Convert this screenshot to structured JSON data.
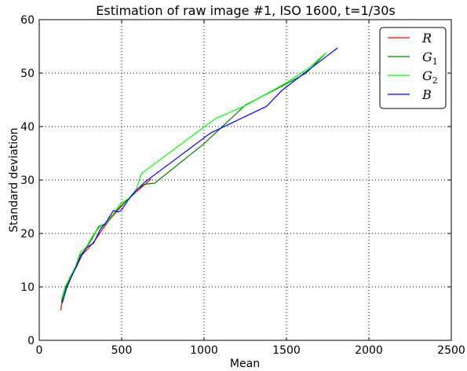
{
  "chart_data": {
    "type": "line",
    "title": "Estimation of raw image #1, ISO 1600, t=1/30s",
    "xlabel": "Mean",
    "ylabel": "Standard deviation",
    "xlim": [
      0,
      2500
    ],
    "ylim": [
      0,
      60
    ],
    "xticks": [
      0,
      500,
      1000,
      1500,
      2000,
      2500
    ],
    "yticks": [
      0,
      10,
      20,
      30,
      40,
      50,
      60
    ],
    "grid": true,
    "legend_position": "top-right",
    "series": [
      {
        "name": "R",
        "legend_main": "R",
        "legend_sub": "",
        "color": "#ff0000",
        "points": [
          [
            130,
            5.6
          ],
          [
            145,
            8.5
          ],
          [
            170,
            10.5
          ],
          [
            200,
            12.3
          ],
          [
            230,
            14.0
          ],
          [
            260,
            16.0
          ],
          [
            300,
            17.3
          ],
          [
            340,
            18.8
          ],
          [
            380,
            20.6
          ],
          [
            420,
            22.3
          ],
          [
            470,
            24.1
          ],
          [
            520,
            25.8
          ],
          [
            570,
            27.3
          ],
          [
            620,
            28.6
          ],
          [
            680,
            30.2
          ]
        ]
      },
      {
        "name": "G1",
        "legend_main": "G",
        "legend_sub": "1",
        "color": "#008000",
        "points": [
          [
            135,
            7.2
          ],
          [
            160,
            9.8
          ],
          [
            185,
            11.8
          ],
          [
            215,
            13.3
          ],
          [
            245,
            15.8
          ],
          [
            280,
            17.0
          ],
          [
            320,
            19.0
          ],
          [
            360,
            21.3
          ],
          [
            400,
            21.8
          ],
          [
            440,
            23.3
          ],
          [
            490,
            25.0
          ],
          [
            540,
            26.4
          ],
          [
            590,
            28.2
          ],
          [
            640,
            29.2
          ],
          [
            700,
            29.4
          ],
          [
            1000,
            36.8
          ],
          [
            1250,
            44.0
          ],
          [
            1500,
            48.0
          ],
          [
            1620,
            50.0
          ],
          [
            1740,
            53.8
          ]
        ]
      },
      {
        "name": "G2",
        "legend_main": "G",
        "legend_sub": "2",
        "color": "#00ff00",
        "points": [
          [
            135,
            7.6
          ],
          [
            160,
            10.2
          ],
          [
            190,
            12.0
          ],
          [
            220,
            13.8
          ],
          [
            250,
            16.5
          ],
          [
            285,
            17.4
          ],
          [
            325,
            19.6
          ],
          [
            360,
            21.0
          ],
          [
            395,
            21.5
          ],
          [
            440,
            23.2
          ],
          [
            490,
            25.5
          ],
          [
            540,
            26.5
          ],
          [
            580,
            27.4
          ],
          [
            620,
            31.2
          ],
          [
            1070,
            41.5
          ],
          [
            1250,
            43.9
          ],
          [
            1500,
            48.2
          ],
          [
            1630,
            50.8
          ],
          [
            1740,
            53.8
          ]
        ]
      },
      {
        "name": "B",
        "legend_main": "B",
        "legend_sub": "",
        "color": "#0000ff",
        "points": [
          [
            140,
            7.0
          ],
          [
            165,
            9.7
          ],
          [
            190,
            11.5
          ],
          [
            220,
            13.5
          ],
          [
            250,
            15.6
          ],
          [
            285,
            17.3
          ],
          [
            330,
            18.2
          ],
          [
            370,
            20.7
          ],
          [
            410,
            22.3
          ],
          [
            450,
            24.3
          ],
          [
            480,
            24.0
          ],
          [
            500,
            24.4
          ],
          [
            540,
            26.3
          ],
          [
            590,
            28.1
          ],
          [
            640,
            29.6
          ],
          [
            1040,
            38.8
          ],
          [
            1380,
            43.8
          ],
          [
            1470,
            46.7
          ],
          [
            1600,
            49.8
          ],
          [
            1720,
            52.6
          ],
          [
            1810,
            54.7
          ]
        ]
      }
    ]
  }
}
